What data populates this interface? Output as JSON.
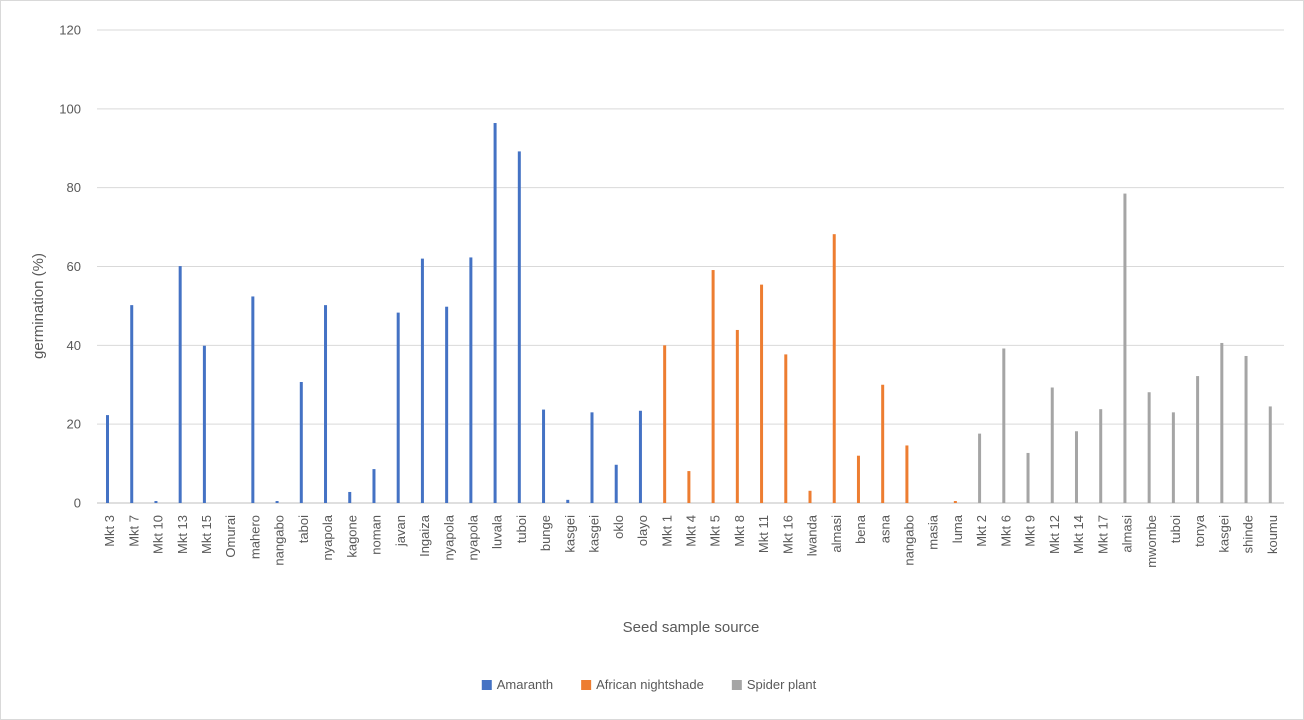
{
  "chart_data": {
    "type": "bar",
    "title": "",
    "xlabel": "Seed sample source",
    "ylabel": "germination (%)",
    "ylim": [
      0,
      120
    ],
    "yticks": [
      0,
      20,
      40,
      60,
      80,
      100,
      120
    ],
    "grid": "horizontal",
    "legend_position": "bottom",
    "series": [
      {
        "name": "Amaranth",
        "color": "#4472C4",
        "categories": [
          "Mkt 3",
          "Mkt 7",
          "Mkt 10",
          "Mkt 13",
          "Mkt 15",
          "Omurai",
          "mahero",
          "nangabo",
          "taboi",
          "nyapola",
          "kagone",
          "noman",
          "javan",
          "Ingaiza",
          "nyapola",
          "nyapola",
          "luvala",
          "tuboi",
          "bunge",
          "kasgei",
          "kasgei",
          "oklo",
          "olayo"
        ],
        "values": [
          22.3,
          50.2,
          0.5,
          60.1,
          39.9,
          0,
          52.4,
          0.5,
          30.7,
          50.2,
          2.8,
          8.6,
          48.3,
          62,
          49.8,
          62.3,
          96.4,
          89.2,
          23.7,
          0.8,
          23,
          9.7,
          23.4
        ]
      },
      {
        "name": "African nightshade",
        "color": "#ED7D31",
        "categories": [
          "Mkt 1",
          "Mkt 4",
          "Mkt 5",
          "Mkt 8",
          "Mkt 11",
          "Mkt 16",
          "lwanda",
          "almasi",
          "bena",
          "asna",
          "nangabo",
          "masia",
          "luma"
        ],
        "values": [
          40,
          8.1,
          59.1,
          43.9,
          55.4,
          37.7,
          3.1,
          68.2,
          12,
          30,
          14.6,
          0,
          0.5
        ]
      },
      {
        "name": "Spider plant",
        "color": "#A5A5A5",
        "categories": [
          "Mkt 2",
          "Mkt 6",
          "Mkt 9",
          "Mkt 12",
          "Mkt 14",
          "Mkt 17",
          "almasi",
          "mwombe",
          "tuboi",
          "tonya",
          "kasgei",
          "shinde",
          "koumu"
        ],
        "values": [
          17.6,
          39.2,
          12.7,
          29.3,
          18.2,
          23.8,
          78.5,
          28.1,
          23,
          32.2,
          40.6,
          37.3,
          24.5
        ]
      }
    ]
  }
}
